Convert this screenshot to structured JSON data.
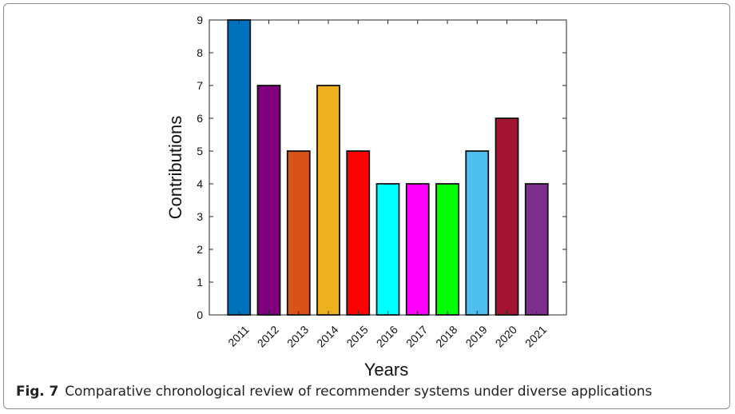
{
  "figure": {
    "label": "Fig. 7",
    "caption": "Comparative chronological review of recommender systems under diverse applications"
  },
  "chart_data": {
    "type": "bar",
    "categories": [
      "2011",
      "2012",
      "2013",
      "2014",
      "2015",
      "2016",
      "2017",
      "2018",
      "2019",
      "2020",
      "2021"
    ],
    "values": [
      9,
      7,
      5,
      7,
      5,
      4,
      4,
      4,
      5,
      6,
      4
    ],
    "colors": [
      "#0072bd",
      "#7e007e",
      "#d95319",
      "#edb120",
      "#ff0000",
      "#00ffff",
      "#ff00ff",
      "#00ff00",
      "#4dbeee",
      "#a2142f",
      "#7e2f8e"
    ],
    "xlabel": "Years",
    "ylabel": "Contributions",
    "ylim": [
      0,
      9
    ],
    "yticks": [
      0,
      1,
      2,
      3,
      4,
      5,
      6,
      7,
      8,
      9
    ],
    "grid": false,
    "legend": "none"
  }
}
